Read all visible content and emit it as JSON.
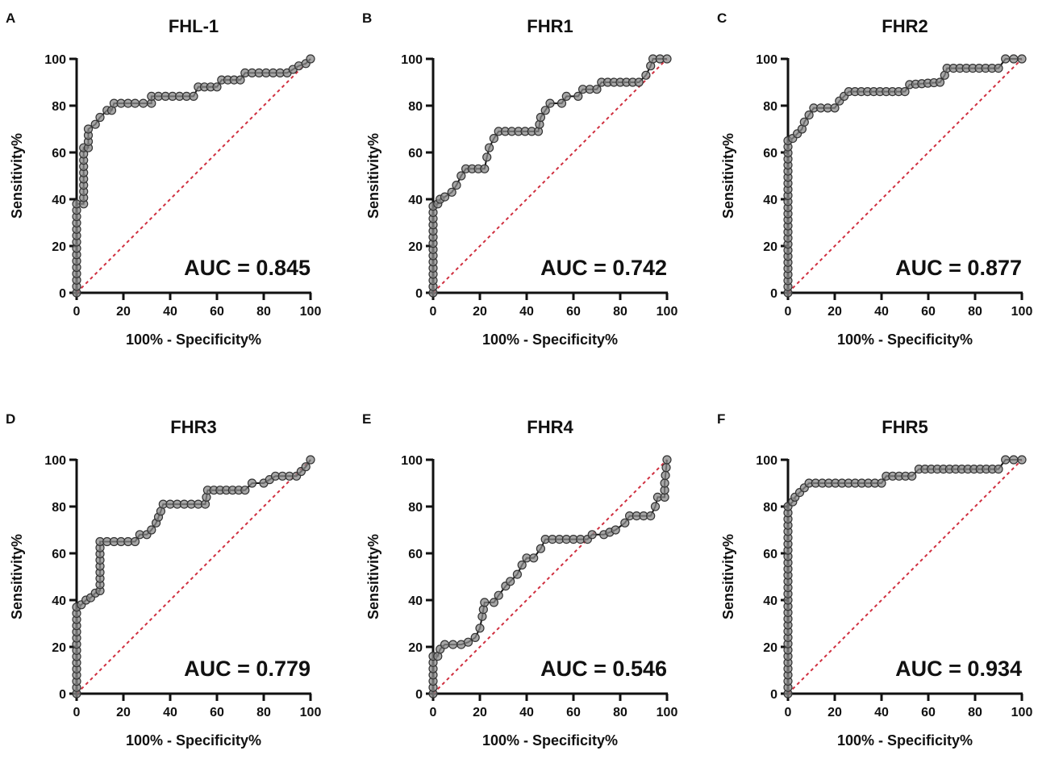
{
  "chart_data": [
    {
      "type": "line",
      "panel_label": "A",
      "title": "FHL-1",
      "xlabel": "100% - Specificity%",
      "ylabel": "Sensitivity%",
      "xlim": [
        0,
        100
      ],
      "ylim": [
        0,
        100
      ],
      "xticks": [
        "0",
        "20",
        "40",
        "60",
        "80",
        "100"
      ],
      "yticks": [
        "0",
        "20",
        "40",
        "60",
        "80",
        "100"
      ],
      "annotation": "AUC = 0.845",
      "points": [
        [
          0,
          0
        ],
        [
          0,
          38
        ],
        [
          3,
          38
        ],
        [
          3,
          62
        ],
        [
          5,
          62
        ],
        [
          5,
          70
        ],
        [
          8,
          72
        ],
        [
          10,
          75
        ],
        [
          13,
          78
        ],
        [
          15,
          78
        ],
        [
          16,
          81
        ],
        [
          25,
          81
        ],
        [
          32,
          81
        ],
        [
          32,
          84
        ],
        [
          50,
          84
        ],
        [
          52,
          88
        ],
        [
          60,
          88
        ],
        [
          62,
          91
        ],
        [
          70,
          91
        ],
        [
          72,
          94
        ],
        [
          90,
          94
        ],
        [
          95,
          97
        ],
        [
          98,
          98
        ],
        [
          100,
          100
        ]
      ]
    },
    {
      "type": "line",
      "panel_label": "B",
      "title": "FHR1",
      "xlabel": "100% - Specificity%",
      "ylabel": "Sensitivity%",
      "xlim": [
        0,
        100
      ],
      "ylim": [
        0,
        100
      ],
      "xticks": [
        "0",
        "20",
        "40",
        "60",
        "80",
        "100"
      ],
      "yticks": [
        "0",
        "20",
        "40",
        "60",
        "80",
        "100"
      ],
      "annotation": "AUC = 0.742",
      "points": [
        [
          0,
          0
        ],
        [
          0,
          37
        ],
        [
          2,
          38
        ],
        [
          3,
          40
        ],
        [
          5,
          41
        ],
        [
          8,
          43
        ],
        [
          10,
          46
        ],
        [
          12,
          50
        ],
        [
          14,
          53
        ],
        [
          22,
          53
        ],
        [
          23,
          58
        ],
        [
          24,
          62
        ],
        [
          26,
          66
        ],
        [
          28,
          69
        ],
        [
          45,
          69
        ],
        [
          46,
          75
        ],
        [
          48,
          78
        ],
        [
          50,
          81
        ],
        [
          55,
          81
        ],
        [
          57,
          84
        ],
        [
          62,
          84
        ],
        [
          64,
          87
        ],
        [
          70,
          87
        ],
        [
          72,
          90
        ],
        [
          88,
          90
        ],
        [
          91,
          93
        ],
        [
          93,
          97
        ],
        [
          94,
          100
        ],
        [
          100,
          100
        ]
      ]
    },
    {
      "type": "line",
      "panel_label": "C",
      "title": "FHR2",
      "xlabel": "100% - Specificity%",
      "ylabel": "Sensitivity%",
      "xlim": [
        0,
        100
      ],
      "ylim": [
        0,
        100
      ],
      "xticks": [
        "0",
        "20",
        "40",
        "60",
        "80",
        "100"
      ],
      "yticks": [
        "0",
        "20",
        "40",
        "60",
        "80",
        "100"
      ],
      "annotation": "AUC = 0.877",
      "points": [
        [
          0,
          0
        ],
        [
          0,
          65
        ],
        [
          2,
          66
        ],
        [
          4,
          68
        ],
        [
          6,
          70
        ],
        [
          7,
          73
        ],
        [
          9,
          76
        ],
        [
          11,
          79
        ],
        [
          20,
          79
        ],
        [
          22,
          82
        ],
        [
          24,
          84
        ],
        [
          26,
          86
        ],
        [
          50,
          86
        ],
        [
          52,
          89
        ],
        [
          65,
          90
        ],
        [
          67,
          93
        ],
        [
          68,
          96
        ],
        [
          90,
          96
        ],
        [
          93,
          100
        ],
        [
          100,
          100
        ]
      ]
    },
    {
      "type": "line",
      "panel_label": "D",
      "title": "FHR3",
      "xlabel": "100% - Specificity%",
      "ylabel": "Sensitivity%",
      "xlim": [
        0,
        100
      ],
      "ylim": [
        0,
        100
      ],
      "xticks": [
        "0",
        "20",
        "40",
        "60",
        "80",
        "100"
      ],
      "yticks": [
        "0",
        "20",
        "40",
        "60",
        "80",
        "100"
      ],
      "annotation": "AUC = 0.779",
      "points": [
        [
          0,
          0
        ],
        [
          0,
          37
        ],
        [
          2,
          38
        ],
        [
          4,
          40
        ],
        [
          6,
          41
        ],
        [
          8,
          43
        ],
        [
          10,
          44
        ],
        [
          10,
          65
        ],
        [
          25,
          65
        ],
        [
          27,
          68
        ],
        [
          30,
          68
        ],
        [
          32,
          70
        ],
        [
          34,
          73
        ],
        [
          36,
          78
        ],
        [
          37,
          81
        ],
        [
          55,
          81
        ],
        [
          56,
          87
        ],
        [
          72,
          87
        ],
        [
          75,
          90
        ],
        [
          80,
          90
        ],
        [
          85,
          93
        ],
        [
          94,
          93
        ],
        [
          98,
          97
        ],
        [
          100,
          100
        ]
      ]
    },
    {
      "type": "line",
      "panel_label": "E",
      "title": "FHR4",
      "xlabel": "100% - Specificity%",
      "ylabel": "Sensitivity%",
      "xlim": [
        0,
        100
      ],
      "ylim": [
        0,
        100
      ],
      "xticks": [
        "0",
        "20",
        "40",
        "60",
        "80",
        "100"
      ],
      "yticks": [
        "0",
        "20",
        "40",
        "60",
        "80",
        "100"
      ],
      "annotation": "AUC = 0.546",
      "points": [
        [
          0,
          0
        ],
        [
          0,
          16
        ],
        [
          2,
          16
        ],
        [
          3,
          19
        ],
        [
          5,
          21
        ],
        [
          12,
          21
        ],
        [
          15,
          22
        ],
        [
          18,
          24
        ],
        [
          20,
          28
        ],
        [
          21,
          33
        ],
        [
          22,
          39
        ],
        [
          26,
          39
        ],
        [
          28,
          42
        ],
        [
          31,
          46
        ],
        [
          33,
          48
        ],
        [
          36,
          51
        ],
        [
          38,
          55
        ],
        [
          40,
          58
        ],
        [
          43,
          58
        ],
        [
          46,
          62
        ],
        [
          48,
          66
        ],
        [
          66,
          66
        ],
        [
          68,
          68
        ],
        [
          73,
          68
        ],
        [
          78,
          70
        ],
        [
          82,
          73
        ],
        [
          84,
          76
        ],
        [
          93,
          76
        ],
        [
          95,
          80
        ],
        [
          96,
          84
        ],
        [
          99,
          84
        ],
        [
          99,
          90
        ],
        [
          100,
          100
        ]
      ]
    },
    {
      "type": "line",
      "panel_label": "F",
      "title": "FHR5",
      "xlabel": "100% - Specificity%",
      "ylabel": "Sensitivity%",
      "xlim": [
        0,
        100
      ],
      "ylim": [
        0,
        100
      ],
      "xticks": [
        "0",
        "20",
        "40",
        "60",
        "80",
        "100"
      ],
      "yticks": [
        "0",
        "20",
        "40",
        "60",
        "80",
        "100"
      ],
      "annotation": "AUC = 0.934",
      "points": [
        [
          0,
          0
        ],
        [
          0,
          80
        ],
        [
          2,
          82
        ],
        [
          3,
          84
        ],
        [
          5,
          86
        ],
        [
          7,
          88
        ],
        [
          9,
          90
        ],
        [
          40,
          90
        ],
        [
          42,
          93
        ],
        [
          53,
          93
        ],
        [
          56,
          96
        ],
        [
          90,
          96
        ],
        [
          93,
          100
        ],
        [
          100,
          100
        ]
      ]
    }
  ],
  "colors": {
    "curve": "#111111",
    "marker_fill": "#8a8a8a",
    "reference": "#d03040"
  }
}
